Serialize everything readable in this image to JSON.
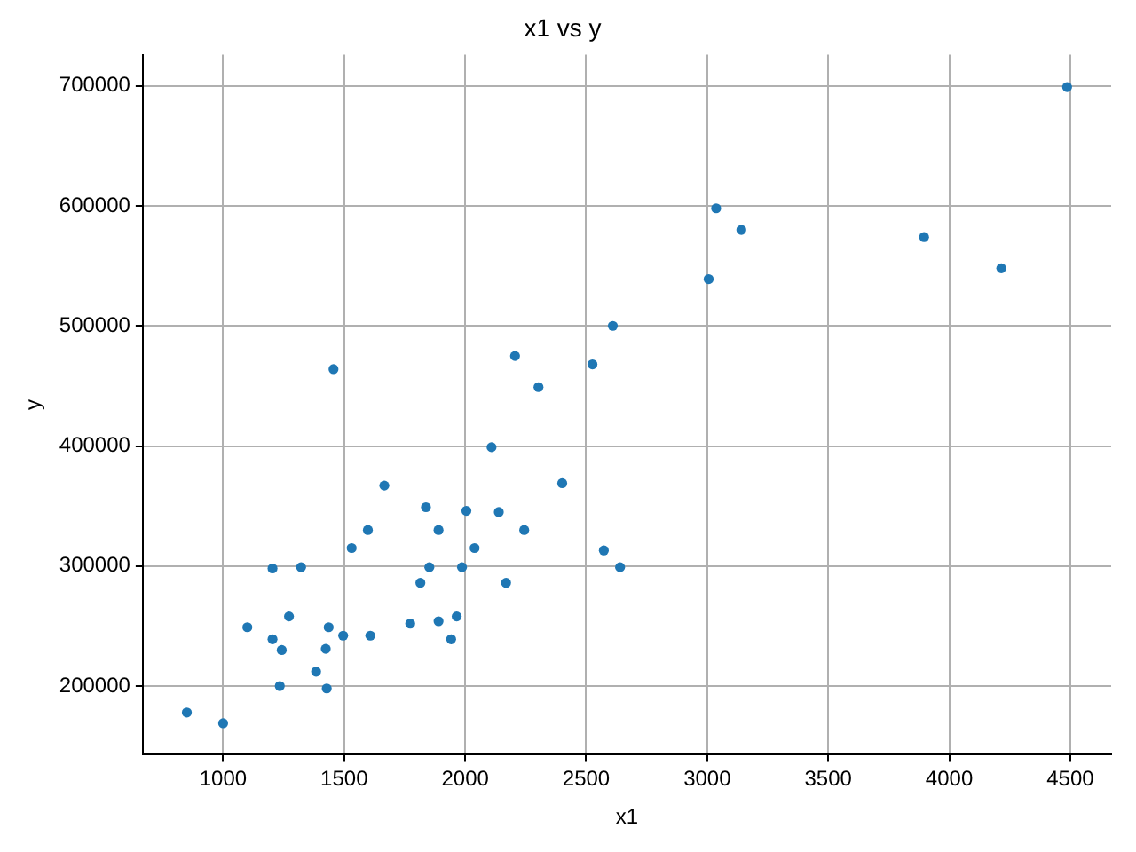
{
  "chart_data": {
    "type": "scatter",
    "title": "x1 vs y",
    "xlabel": "x1",
    "ylabel": "y",
    "xlim": [
      668,
      4669
    ],
    "ylim": [
      142800,
      726000
    ],
    "xticks": [
      1000,
      1500,
      2000,
      2500,
      3000,
      3500,
      4000,
      4500
    ],
    "yticks": [
      200000,
      300000,
      400000,
      500000,
      600000,
      700000
    ],
    "grid": true,
    "marker": "circle",
    "legend": false,
    "series": [
      {
        "color": "#1f77b4",
        "x": [
          850,
          1000,
          1100,
          1204,
          1204,
          1234,
          1242,
          1272,
          1322,
          1384,
          1424,
          1428,
          1436,
          1456,
          1496,
          1531,
          1598,
          1608,
          1666,
          1773,
          1815,
          1838,
          1852,
          1890,
          1890,
          1942,
          1965,
          1987,
          2005,
          2039,
          2109,
          2139,
          2169,
          2206,
          2244,
          2303,
          2401,
          2526,
          2573,
          2610,
          2640,
          3006,
          3037,
          3141,
          3896,
          4215,
          4487
        ],
        "values": [
          178000,
          169000,
          249000,
          239000,
          298000,
          200000,
          230000,
          258000,
          299000,
          212000,
          231000,
          198000,
          249000,
          464000,
          242000,
          315000,
          330000,
          242000,
          367000,
          252000,
          286000,
          349000,
          299000,
          330000,
          254000,
          239000,
          258000,
          299000,
          346000,
          315000,
          399000,
          345000,
          286000,
          475000,
          330000,
          449000,
          369000,
          468000,
          313000,
          500000,
          299000,
          539000,
          598000,
          580000,
          574000,
          548000,
          699000
        ]
      }
    ]
  }
}
